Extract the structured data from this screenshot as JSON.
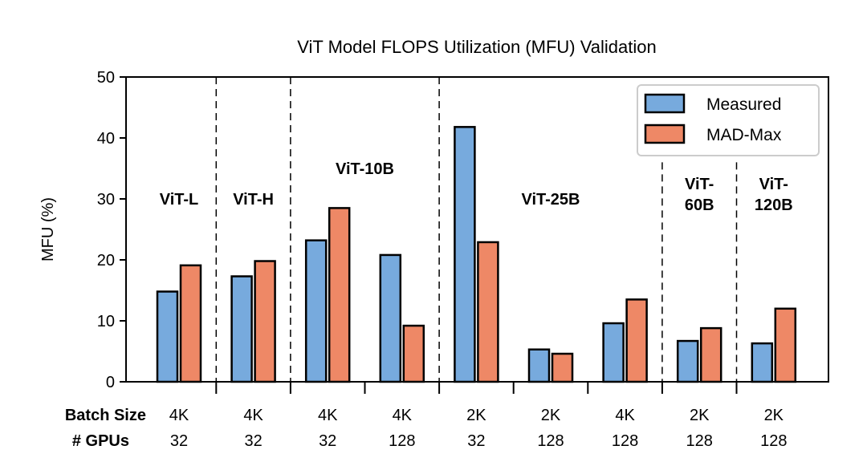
{
  "chart_data": {
    "type": "bar",
    "title": "ViT Model FLOPS Utilization (MFU) Validation",
    "xlabel": "",
    "ylabel": "MFU (%)",
    "ylim": [
      0,
      50
    ],
    "yticks": [
      0,
      10,
      20,
      30,
      40,
      50
    ],
    "grid": false,
    "legend_position": "top-right",
    "row_headers": [
      "Batch Size",
      "# GPUs"
    ],
    "categories": [
      {
        "batch": "4K",
        "gpus": "32"
      },
      {
        "batch": "4K",
        "gpus": "32"
      },
      {
        "batch": "4K",
        "gpus": "32"
      },
      {
        "batch": "4K",
        "gpus": "128"
      },
      {
        "batch": "2K",
        "gpus": "32"
      },
      {
        "batch": "2K",
        "gpus": "128"
      },
      {
        "batch": "4K",
        "gpus": "128"
      },
      {
        "batch": "2K",
        "gpus": "128"
      },
      {
        "batch": "2K",
        "gpus": "128"
      }
    ],
    "series": [
      {
        "name": "Measured",
        "color": "#77aadd",
        "values": [
          14.8,
          17.3,
          23.2,
          20.8,
          41.8,
          5.3,
          9.6,
          6.7,
          6.3
        ]
      },
      {
        "name": "MAD-Max",
        "color": "#ee8866",
        "values": [
          19.1,
          19.8,
          28.5,
          9.2,
          22.9,
          4.6,
          13.5,
          8.8,
          12.0
        ]
      }
    ],
    "groups": [
      {
        "label": [
          "ViT-L"
        ],
        "start": 0,
        "end": 0,
        "label_y": 30
      },
      {
        "label": [
          "ViT-H"
        ],
        "start": 1,
        "end": 1,
        "label_y": 30
      },
      {
        "label": [
          "ViT-10B"
        ],
        "start": 2,
        "end": 3,
        "label_y": 35
      },
      {
        "label": [
          "ViT-25B"
        ],
        "start": 4,
        "end": 6,
        "label_y": 30
      },
      {
        "label": [
          "ViT-",
          "60B"
        ],
        "start": 7,
        "end": 7,
        "label_y": 32.5
      },
      {
        "label": [
          "ViT-",
          "120B"
        ],
        "start": 8,
        "end": 8,
        "label_y": 32.5
      }
    ]
  }
}
